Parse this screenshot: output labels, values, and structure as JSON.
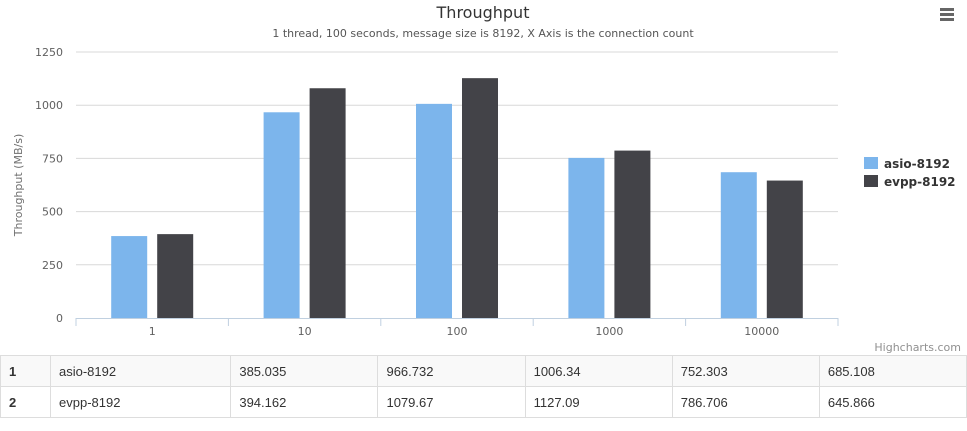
{
  "menu_icon": "hamburger-menu-icon",
  "credits": "Highcharts.com",
  "chart_data": {
    "type": "bar",
    "title": "Throughput",
    "subtitle": "1 thread, 100 seconds, message size is 8192, X Axis is the connection count",
    "xlabel": "",
    "ylabel": "Throughput (MB/s)",
    "categories": [
      "1",
      "10",
      "100",
      "1000",
      "10000"
    ],
    "ylim": [
      0,
      1250
    ],
    "yticks": [
      0,
      250,
      500,
      750,
      1000,
      1250
    ],
    "grid": true,
    "legend_position": "right",
    "series": [
      {
        "name": "asio-8192",
        "color": "#7cb5ec",
        "values": [
          385.035,
          966.732,
          1006.34,
          752.303,
          685.108
        ]
      },
      {
        "name": "evpp-8192",
        "color": "#434348",
        "values": [
          394.162,
          1079.67,
          1127.09,
          786.706,
          645.866
        ]
      }
    ]
  },
  "table": {
    "rows": [
      {
        "index": "1",
        "name": "asio-8192",
        "values": [
          "385.035",
          "966.732",
          "1006.34",
          "752.303",
          "685.108"
        ]
      },
      {
        "index": "2",
        "name": "evpp-8192",
        "values": [
          "394.162",
          "1079.67",
          "1127.09",
          "786.706",
          "645.866"
        ]
      }
    ]
  }
}
